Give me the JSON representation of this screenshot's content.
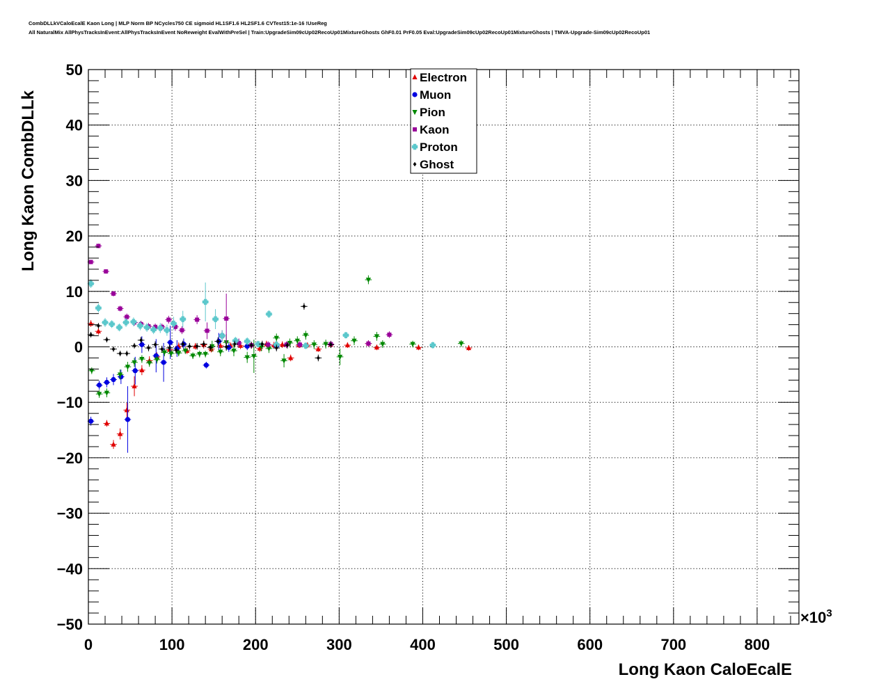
{
  "titles": {
    "line1": "CombDLLkVCaloEcalE Kaon Long | MLP Norm BP NCycles750 CE sigmoid HL1SF1.6 HL2SF1.6 CVTest15:1e-16 !UseReg",
    "line2": "All NaturalMix AllPhysTracksInEvent:AllPhysTracksInEvent NoReweight EvalWithPreSel | Train:UpgradeSim09cUp02RecoUp01MixtureGhosts GhF0.01 PrF0.05 Eval:UpgradeSim09cUp02RecoUp01MixtureGhosts | TMVA-Upgrade-Sim09cUp02RecoUp01"
  },
  "chart_data": {
    "type": "scatter",
    "xlabel": "Long Kaon CaloEcalE",
    "ylabel": "Long Kaon CombDLLk",
    "x_multiplier_label": "×10",
    "x_multiplier_exp": "3",
    "xlim": [
      0,
      850
    ],
    "ylim": [
      -50,
      50
    ],
    "x_ticks": [
      0,
      100,
      200,
      300,
      400,
      500,
      600,
      700,
      800
    ],
    "x_tick_labels": [
      "0",
      "100",
      "200",
      "300",
      "400",
      "500",
      "600",
      "700",
      "800"
    ],
    "y_ticks": [
      -50,
      -40,
      -30,
      -20,
      -10,
      0,
      10,
      20,
      30,
      40,
      50
    ],
    "y_tick_labels": [
      "−50",
      "−40",
      "−30",
      "−20",
      "−10",
      "0",
      "10",
      "20",
      "30",
      "40",
      "50"
    ],
    "grid": true,
    "legend_position": "top-center",
    "series": [
      {
        "name": "Electron",
        "color": "#e00000",
        "marker": "triangle-up",
        "points": [
          [
            3,
            4.2,
            0.6
          ],
          [
            12,
            2.8,
            0.6
          ],
          [
            22,
            -13.8,
            0.6
          ],
          [
            30,
            -17.6,
            0.8
          ],
          [
            38,
            -15.7,
            1.0
          ],
          [
            46,
            -11.4,
            1.3
          ],
          [
            55,
            -7.1,
            1.8
          ],
          [
            64,
            -4.2,
            0.9
          ],
          [
            73,
            -2.5,
            0.8
          ],
          [
            82,
            -1.8,
            0.8
          ],
          [
            97,
            -0.5,
            0.7
          ],
          [
            108,
            0.1,
            0.7
          ],
          [
            118,
            -0.7,
            0.6
          ],
          [
            128,
            0.1,
            0.6
          ],
          [
            138,
            0.4,
            0.7
          ],
          [
            147,
            -0.4,
            0.6
          ],
          [
            158,
            0.2,
            0.6
          ],
          [
            170,
            0.2,
            0.6
          ],
          [
            182,
            0.2,
            0.6
          ],
          [
            195,
            0.3,
            0.6
          ],
          [
            205,
            -0.3,
            0.6
          ],
          [
            213,
            0.5,
            0.6
          ],
          [
            222,
            0.3,
            0.6
          ],
          [
            232,
            0.4,
            0.6
          ],
          [
            242,
            -2.0,
            0.6
          ],
          [
            252,
            0.3,
            0.5
          ],
          [
            262,
            0.3,
            0.5
          ],
          [
            275,
            -0.4,
            0.5
          ],
          [
            290,
            0.4,
            0.5
          ],
          [
            310,
            0.3,
            0.5
          ],
          [
            335,
            0.6,
            0.5
          ],
          [
            345,
            -0.1,
            0.5
          ],
          [
            395,
            -0.1,
            0.5
          ],
          [
            455,
            -0.2,
            0.5
          ]
        ]
      },
      {
        "name": "Muon",
        "color": "#0000e0",
        "marker": "circle",
        "points": [
          [
            3,
            -13.4,
            0.8
          ],
          [
            13,
            -6.9,
            0.8
          ],
          [
            22,
            -6.4,
            0.9
          ],
          [
            30,
            -5.9,
            1.0
          ],
          [
            39,
            -5.4,
            1.3
          ],
          [
            47,
            -13.1,
            6.0
          ],
          [
            56,
            -4.3,
            2.5
          ],
          [
            64,
            0.4,
            1.5
          ],
          [
            81,
            -1.6,
            3.0
          ],
          [
            90,
            -2.8,
            3.5
          ],
          [
            98,
            0.8,
            3.0
          ],
          [
            106,
            -0.3,
            1.5
          ],
          [
            114,
            0.5,
            1.0
          ],
          [
            141,
            -3.3,
            0.6
          ],
          [
            156,
            1.0,
            1.5
          ],
          [
            168,
            -0.1,
            0.8
          ],
          [
            190,
            0.1,
            0.7
          ],
          [
            225,
            0.2,
            0.8
          ]
        ]
      },
      {
        "name": "Pion",
        "color": "#008800",
        "marker": "triangle-down",
        "points": [
          [
            4,
            -4.3,
            0.6
          ],
          [
            13,
            -8.5,
            0.7
          ],
          [
            22,
            -8.3,
            0.8
          ],
          [
            38,
            -5.0,
            0.9
          ],
          [
            47,
            -3.6,
            0.9
          ],
          [
            55,
            -2.8,
            0.8
          ],
          [
            64,
            -2.2,
            0.7
          ],
          [
            73,
            -2.9,
            0.7
          ],
          [
            82,
            -2.3,
            0.7
          ],
          [
            91,
            -1.0,
            0.7
          ],
          [
            99,
            -1.2,
            0.6
          ],
          [
            108,
            -1.1,
            0.6
          ],
          [
            116,
            -0.7,
            0.6
          ],
          [
            125,
            -1.6,
            0.6
          ],
          [
            133,
            -1.3,
            0.6
          ],
          [
            140,
            -1.3,
            0.6
          ],
          [
            148,
            0.1,
            1.0
          ],
          [
            158,
            -0.9,
            0.8
          ],
          [
            165,
            0.8,
            1.5
          ],
          [
            174,
            -0.7,
            1.0
          ],
          [
            190,
            -1.9,
            1.0
          ],
          [
            198,
            -1.7,
            3.0
          ],
          [
            207,
            0.0,
            0.8
          ],
          [
            216,
            -0.3,
            0.8
          ],
          [
            225,
            1.6,
            0.8
          ],
          [
            234,
            -2.5,
            1.2
          ],
          [
            241,
            0.7,
            0.8
          ],
          [
            250,
            1.1,
            0.8
          ],
          [
            260,
            2.1,
            0.8
          ],
          [
            270,
            0.4,
            0.8
          ],
          [
            284,
            0.5,
            0.8
          ],
          [
            301,
            -1.8,
            1.5
          ],
          [
            318,
            1.1,
            0.8
          ],
          [
            335,
            12.1,
            0.8
          ],
          [
            345,
            1.9,
            0.8
          ],
          [
            352,
            0.5,
            0.7
          ],
          [
            388,
            0.5,
            0.6
          ],
          [
            446,
            0.6,
            0.6
          ]
        ]
      },
      {
        "name": "Kaon",
        "color": "#990099",
        "marker": "square",
        "points": [
          [
            3,
            15.3,
            0.4
          ],
          [
            12,
            18.2,
            0.4
          ],
          [
            21,
            13.6,
            0.4
          ],
          [
            30,
            9.6,
            0.5
          ],
          [
            38,
            6.9,
            0.5
          ],
          [
            46,
            5.4,
            0.6
          ],
          [
            55,
            4.4,
            0.6
          ],
          [
            63,
            4.1,
            0.6
          ],
          [
            72,
            3.7,
            0.6
          ],
          [
            80,
            3.6,
            0.6
          ],
          [
            88,
            3.6,
            0.6
          ],
          [
            96,
            4.9,
            0.7
          ],
          [
            104,
            3.6,
            0.7
          ],
          [
            112,
            3.0,
            0.7
          ],
          [
            130,
            4.9,
            0.8
          ],
          [
            142,
            2.9,
            1.5
          ],
          [
            160,
            2.0,
            1.0
          ],
          [
            165,
            5.1,
            4.5
          ],
          [
            180,
            0.7,
            0.8
          ],
          [
            195,
            0.3,
            0.6
          ],
          [
            215,
            0.4,
            0.6
          ],
          [
            237,
            0.4,
            0.6
          ],
          [
            253,
            0.4,
            0.6
          ],
          [
            290,
            0.5,
            0.6
          ],
          [
            335,
            0.6,
            0.6
          ],
          [
            360,
            2.2,
            0.6
          ]
        ]
      },
      {
        "name": "Proton",
        "color": "#5cc8cc",
        "marker": "cross",
        "points": [
          [
            3,
            11.4,
            0.8
          ],
          [
            12,
            7.0,
            0.8
          ],
          [
            20,
            4.4,
            0.8
          ],
          [
            28,
            4.1,
            0.7
          ],
          [
            37,
            3.5,
            0.7
          ],
          [
            45,
            4.4,
            0.8
          ],
          [
            54,
            4.5,
            0.8
          ],
          [
            62,
            3.8,
            0.8
          ],
          [
            70,
            3.5,
            0.8
          ],
          [
            78,
            3.1,
            0.8
          ],
          [
            86,
            3.4,
            0.9
          ],
          [
            94,
            3.0,
            1.0
          ],
          [
            102,
            4.2,
            1.2
          ],
          [
            113,
            5.0,
            1.5
          ],
          [
            140,
            8.1,
            3.5
          ],
          [
            152,
            5.0,
            1.8
          ],
          [
            160,
            2.0,
            1.0
          ],
          [
            176,
            1.1,
            0.7
          ],
          [
            190,
            1.0,
            0.7
          ],
          [
            203,
            0.5,
            0.6
          ],
          [
            216,
            5.9,
            0.7
          ],
          [
            225,
            0.4,
            0.6
          ],
          [
            260,
            0.2,
            0.6
          ],
          [
            308,
            2.1,
            0.6
          ],
          [
            412,
            0.3,
            0.6
          ]
        ]
      },
      {
        "name": "Ghost",
        "color": "#000000",
        "marker": "diamond",
        "points": [
          [
            3,
            2.2,
            0.5
          ],
          [
            12,
            3.8,
            0.5
          ],
          [
            22,
            1.3,
            0.5
          ],
          [
            30,
            -0.4,
            0.5
          ],
          [
            38,
            -1.2,
            0.5
          ],
          [
            46,
            -1.2,
            0.5
          ],
          [
            55,
            0.2,
            0.5
          ],
          [
            63,
            1.2,
            0.6
          ],
          [
            72,
            -0.2,
            0.6
          ],
          [
            80,
            0.4,
            0.6
          ],
          [
            88,
            -0.4,
            0.6
          ],
          [
            97,
            -0.2,
            0.6
          ],
          [
            105,
            -0.6,
            0.6
          ],
          [
            113,
            0.5,
            0.6
          ],
          [
            121,
            0.1,
            0.6
          ],
          [
            130,
            0.1,
            0.6
          ],
          [
            138,
            0.5,
            0.6
          ],
          [
            146,
            -0.1,
            0.6
          ],
          [
            155,
            1.0,
            0.7
          ],
          [
            165,
            0.0,
            0.6
          ],
          [
            175,
            0.5,
            0.6
          ],
          [
            195,
            0.3,
            0.6
          ],
          [
            208,
            0.5,
            0.6
          ],
          [
            225,
            -0.2,
            0.6
          ],
          [
            238,
            0.3,
            0.6
          ],
          [
            258,
            7.3,
            0.6
          ],
          [
            275,
            -2.0,
            0.6
          ],
          [
            290,
            0.4,
            0.6
          ]
        ]
      }
    ]
  }
}
